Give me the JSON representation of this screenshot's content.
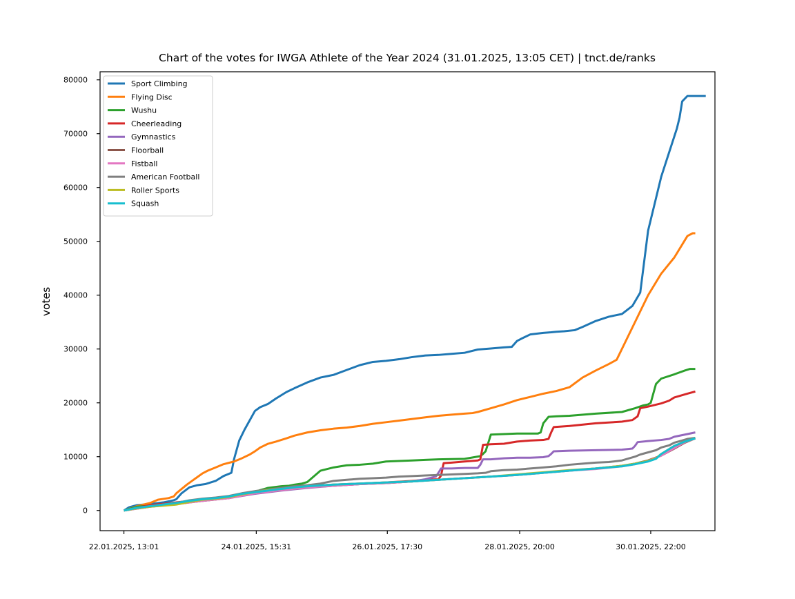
{
  "chart_data": {
    "type": "line",
    "title": "Chart of the votes for IWGA Athlete of the Year 2024 (31.01.2025, 13:05 CET) | tnct.de/ranks",
    "xlabel": "",
    "ylabel": "votes",
    "x_unit": "hours since 22.01.2025, 13:01",
    "xlim": [
      -9.1,
      225.5
    ],
    "ylim": [
      -3750,
      81500
    ],
    "x_ticks": [
      {
        "x": 0,
        "label": "22.01.2025, 13:01"
      },
      {
        "x": 50.5,
        "label": "24.01.2025, 15:31"
      },
      {
        "x": 100.5,
        "label": "26.01.2025, 17:30"
      },
      {
        "x": 151,
        "label": "28.01.2025, 20:00"
      },
      {
        "x": 201,
        "label": "30.01.2025, 22:00"
      }
    ],
    "y_ticks": [
      0,
      10000,
      20000,
      30000,
      40000,
      50000,
      60000,
      70000,
      80000
    ],
    "grid": false,
    "legend_position": "top-left",
    "series": [
      {
        "name": "Sport Climbing",
        "color": "#1f77b4",
        "x": [
          0,
          2,
          5,
          10,
          15,
          19,
          20,
          22,
          25,
          28,
          31,
          35,
          38,
          41,
          42,
          44,
          46,
          50,
          52,
          55,
          58,
          62,
          65,
          70,
          75,
          78,
          80,
          85,
          90,
          95,
          100,
          105,
          110,
          115,
          120,
          125,
          130,
          135,
          140,
          145,
          148,
          150,
          152,
          155,
          160,
          163,
          165,
          168,
          172,
          175,
          180,
          185,
          190,
          194,
          197,
          200,
          203,
          205,
          207,
          208,
          209,
          210,
          211,
          212,
          213,
          215,
          218,
          219,
          220,
          221,
          222
        ],
        "y": [
          0,
          600,
          1000,
          1200,
          1500,
          1900,
          2100,
          3200,
          4300,
          4700,
          4900,
          5500,
          6400,
          7000,
          9500,
          13000,
          15000,
          18500,
          19200,
          19800,
          20800,
          22000,
          22700,
          23800,
          24700,
          25000,
          25200,
          26100,
          27000,
          27600,
          27800,
          28100,
          28500,
          28800,
          28900,
          29100,
          29300,
          29900,
          30100,
          30300,
          30400,
          31500,
          32000,
          32700,
          33000,
          33100,
          33200,
          33300,
          33500,
          34100,
          35200,
          36000,
          36500,
          38000,
          40500,
          52000,
          58000,
          62000,
          65000,
          66500,
          68000,
          69500,
          71000,
          73000,
          76000,
          77000,
          77000,
          77000,
          77000,
          77000,
          77000
        ]
      },
      {
        "name": "Flying Disc",
        "color": "#ff7f0e",
        "x": [
          0,
          5,
          10,
          13,
          17,
          19,
          20,
          21,
          22,
          24,
          26,
          28,
          30,
          32,
          35,
          38,
          42,
          45,
          48,
          50,
          52,
          55,
          58,
          62,
          65,
          70,
          75,
          80,
          85,
          90,
          95,
          100,
          105,
          110,
          115,
          120,
          125,
          130,
          133,
          135,
          140,
          145,
          150,
          155,
          160,
          165,
          170,
          175,
          180,
          185,
          188,
          190,
          195,
          200,
          205,
          210,
          215,
          217,
          218
        ],
        "y": [
          0,
          800,
          1400,
          2000,
          2300,
          2600,
          3200,
          3600,
          4000,
          4800,
          5500,
          6200,
          6900,
          7400,
          8000,
          8600,
          9100,
          9700,
          10400,
          11000,
          11700,
          12400,
          12800,
          13400,
          13900,
          14500,
          14900,
          15200,
          15400,
          15700,
          16100,
          16400,
          16700,
          17000,
          17300,
          17600,
          17800,
          18000,
          18100,
          18300,
          19000,
          19700,
          20500,
          21100,
          21700,
          22200,
          22900,
          24700,
          26000,
          27200,
          28000,
          30000,
          35000,
          40000,
          44000,
          47000,
          51000,
          51500,
          51500
        ]
      },
      {
        "name": "Wushu",
        "color": "#2ca02c",
        "x": [
          0,
          5,
          10,
          15,
          20,
          25,
          30,
          35,
          40,
          45,
          50,
          55,
          60,
          63,
          65,
          68,
          70,
          75,
          80,
          85,
          90,
          95,
          100,
          110,
          115,
          120,
          130,
          136,
          137,
          138,
          140,
          145,
          150,
          155,
          158,
          159,
          160,
          162,
          165,
          170,
          180,
          190,
          195,
          198,
          200,
          201,
          203,
          205,
          210,
          214,
          216,
          218
        ],
        "y": [
          0,
          700,
          900,
          1000,
          1300,
          1800,
          2100,
          2200,
          2600,
          3000,
          3500,
          4200,
          4500,
          4600,
          4800,
          5000,
          5300,
          7400,
          8000,
          8400,
          8500,
          8700,
          9100,
          9300,
          9400,
          9500,
          9600,
          10100,
          10500,
          11000,
          14100,
          14200,
          14300,
          14300,
          14300,
          14500,
          16200,
          17400,
          17500,
          17600,
          18000,
          18300,
          19000,
          19500,
          19700,
          20000,
          23500,
          24500,
          25300,
          26000,
          26300,
          26300
        ]
      },
      {
        "name": "Cheerleading",
        "color": "#d62728",
        "x": [
          0,
          10,
          20,
          30,
          40,
          50,
          60,
          70,
          80,
          90,
          100,
          110,
          115,
          120,
          121,
          122,
          125,
          130,
          135,
          136,
          137,
          140,
          145,
          150,
          155,
          160,
          162,
          163,
          164,
          170,
          180,
          190,
          194,
          196,
          197,
          200,
          205,
          208,
          210,
          215,
          218
        ],
        "y": [
          0,
          1000,
          1500,
          2000,
          2500,
          3500,
          4000,
          4500,
          4800,
          5000,
          5200,
          5500,
          5700,
          5800,
          6500,
          8800,
          8900,
          9100,
          9300,
          9500,
          12200,
          12300,
          12400,
          12800,
          13000,
          13100,
          13300,
          14500,
          15500,
          15700,
          16200,
          16500,
          16800,
          17500,
          19000,
          19300,
          19900,
          20400,
          21000,
          21700,
          22100
        ]
      },
      {
        "name": "Gymnastics",
        "color": "#9467bd",
        "x": [
          0,
          10,
          20,
          30,
          40,
          50,
          60,
          70,
          80,
          90,
          100,
          110,
          115,
          119,
          120,
          121,
          125,
          130,
          135,
          136,
          137,
          140,
          145,
          150,
          155,
          160,
          162,
          163,
          164,
          170,
          180,
          190,
          194,
          195,
          196,
          200,
          205,
          208,
          210,
          215,
          218
        ],
        "y": [
          0,
          800,
          1300,
          1800,
          2300,
          3100,
          3700,
          4200,
          4600,
          4900,
          5100,
          5400,
          5800,
          6300,
          7000,
          7800,
          7800,
          7900,
          7900,
          8500,
          9500,
          9500,
          9700,
          9800,
          9800,
          9900,
          10100,
          10500,
          11000,
          11100,
          11200,
          11300,
          11500,
          12000,
          12700,
          12900,
          13100,
          13300,
          13700,
          14200,
          14500
        ]
      },
      {
        "name": "Floorball",
        "color": "#8c564b",
        "x": [
          0,
          10,
          20,
          30,
          40,
          50,
          60,
          70,
          80,
          90,
          100,
          110,
          120,
          130,
          140,
          150,
          160,
          170,
          180,
          190,
          195,
          200,
          205,
          210,
          214,
          218
        ],
        "y": [
          0,
          700,
          1200,
          1800,
          2300,
          3200,
          3800,
          4300,
          4600,
          4900,
          5100,
          5400,
          5700,
          6000,
          6300,
          6600,
          7000,
          7400,
          7800,
          8300,
          8700,
          9300,
          10200,
          11500,
          12600,
          13400
        ]
      },
      {
        "name": "Fistball",
        "color": "#e377c2",
        "x": [
          0,
          10,
          20,
          30,
          40,
          50,
          60,
          70,
          80,
          90,
          100,
          110,
          120,
          130,
          140,
          150,
          160,
          170,
          180,
          190,
          195,
          200,
          205,
          210,
          214,
          218
        ],
        "y": [
          0,
          700,
          1200,
          1800,
          2300,
          3200,
          3800,
          4300,
          4600,
          4900,
          5100,
          5400,
          5700,
          6000,
          6300,
          6600,
          7000,
          7400,
          7700,
          8200,
          8600,
          9200,
          10200,
          11600,
          12700,
          13400
        ]
      },
      {
        "name": "American Football",
        "color": "#7f7f7f",
        "x": [
          0,
          5,
          10,
          15,
          20,
          25,
          30,
          35,
          40,
          45,
          50,
          55,
          60,
          65,
          70,
          75,
          80,
          85,
          90,
          95,
          100,
          105,
          110,
          115,
          120,
          125,
          130,
          135,
          138,
          140,
          145,
          150,
          155,
          160,
          165,
          170,
          175,
          180,
          185,
          190,
          195,
          197,
          200,
          203,
          205,
          208,
          210,
          213,
          215,
          218
        ],
        "y": [
          0,
          500,
          800,
          1100,
          1400,
          1900,
          2200,
          2400,
          2700,
          3200,
          3600,
          3900,
          4200,
          4500,
          4700,
          5000,
          5500,
          5700,
          5900,
          6000,
          6100,
          6300,
          6400,
          6500,
          6600,
          6700,
          6800,
          6900,
          7000,
          7300,
          7500,
          7600,
          7800,
          8000,
          8200,
          8500,
          8700,
          8900,
          9000,
          9300,
          10000,
          10400,
          10800,
          11200,
          11700,
          12100,
          12600,
          13000,
          13300,
          13500
        ]
      },
      {
        "name": "Roller Sports",
        "color": "#bcbd22",
        "x": [
          0,
          5,
          10,
          15,
          20,
          22,
          25,
          30,
          35,
          40,
          45,
          50,
          55,
          60,
          65,
          70,
          80,
          90,
          100,
          110,
          120,
          130,
          140,
          150,
          160,
          170,
          180,
          190,
          195,
          200,
          203,
          205,
          210,
          214,
          218
        ],
        "y": [
          0,
          400,
          700,
          900,
          1100,
          1300,
          1600,
          2000,
          2200,
          2500,
          3000,
          3400,
          3800,
          4000,
          4300,
          4500,
          4800,
          5000,
          5200,
          5400,
          5700,
          6000,
          6300,
          6700,
          7100,
          7500,
          7800,
          8300,
          8700,
          9200,
          9700,
          10500,
          12000,
          12800,
          13400
        ]
      },
      {
        "name": "Squash",
        "color": "#17becf",
        "x": [
          0,
          5,
          10,
          15,
          20,
          25,
          30,
          35,
          40,
          45,
          50,
          55,
          60,
          65,
          70,
          80,
          90,
          100,
          110,
          120,
          130,
          140,
          150,
          160,
          170,
          180,
          190,
          195,
          200,
          203,
          205,
          210,
          214,
          218
        ],
        "y": [
          0,
          500,
          800,
          1100,
          1400,
          1800,
          2100,
          2300,
          2600,
          3100,
          3400,
          3700,
          4000,
          4300,
          4500,
          4800,
          5000,
          5200,
          5400,
          5700,
          6000,
          6300,
          6600,
          7000,
          7400,
          7800,
          8200,
          8600,
          9100,
          9600,
          10500,
          12000,
          12800,
          13400
        ]
      }
    ]
  }
}
